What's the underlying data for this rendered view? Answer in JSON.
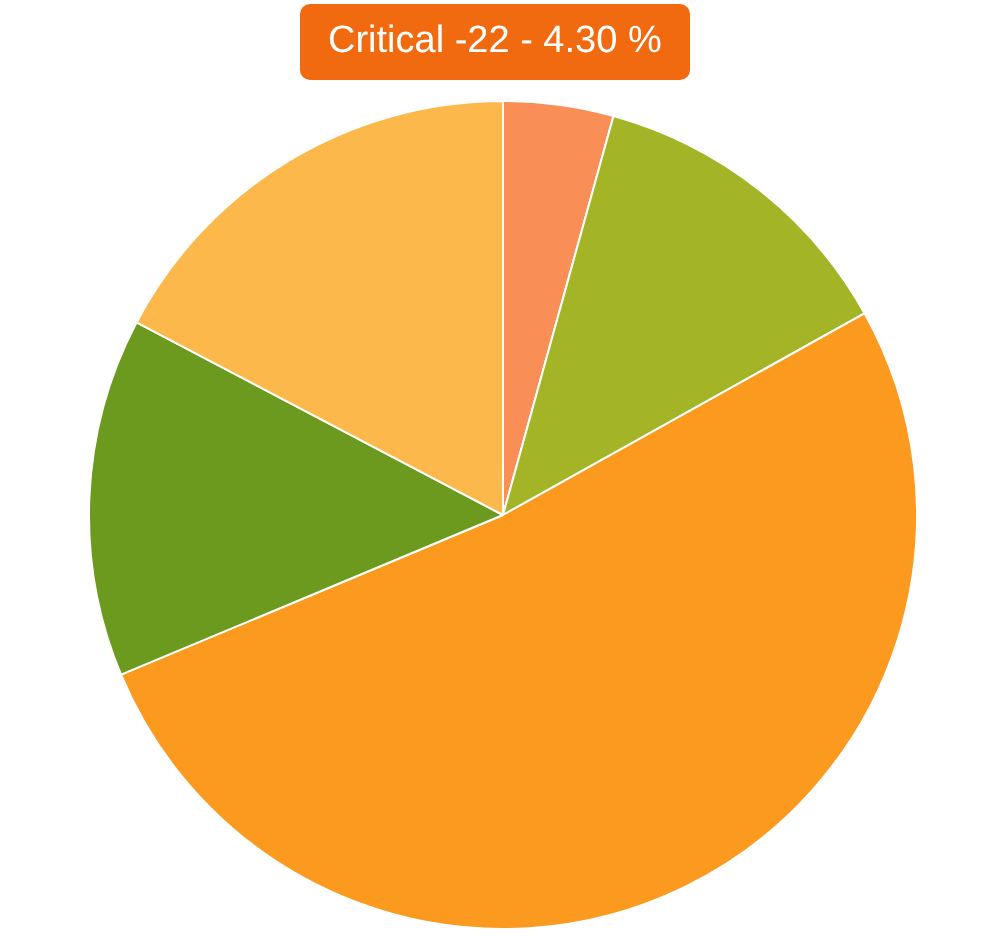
{
  "chart_data": {
    "type": "pie",
    "categories": [
      null,
      null,
      null,
      null,
      null
    ],
    "values": [
      4.3,
      12.6,
      51.8,
      14.0,
      17.3
    ],
    "colors": [
      "#f98e57",
      "#a3b526",
      "#fb9a1f",
      "#6c9a1e",
      "#fcb84a"
    ],
    "annotations": [
      "Critical -22 - 4.30 %"
    ],
    "legend": false
  }
}
